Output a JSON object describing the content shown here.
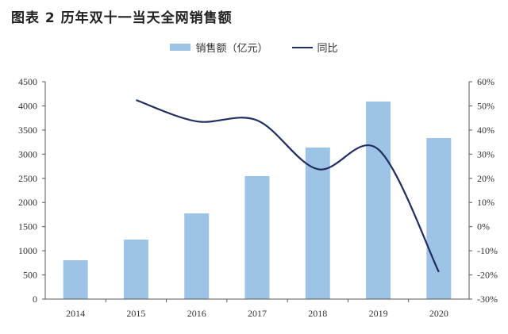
{
  "title": "图表 2 历年双十一当天全网销售额",
  "legend": {
    "bar_label": "销售额（亿元）",
    "line_label": "同比"
  },
  "colors": {
    "bar": "#9DC3E6",
    "line": "#1F2D5F",
    "axis": "#595959"
  },
  "chart_data": {
    "type": "bar+line",
    "title": "图表 2 历年双十一当天全网销售额",
    "categories": [
      "2014",
      "2015",
      "2016",
      "2017",
      "2018",
      "2019",
      "2020"
    ],
    "series": [
      {
        "name": "销售额（亿元）",
        "type": "bar",
        "axis": "left",
        "values": [
          805,
          1232,
          1774,
          2546,
          3137,
          4090,
          3334
        ]
      },
      {
        "name": "同比",
        "type": "line",
        "axis": "right",
        "values": [
          null,
          52.4,
          43.6,
          44.0,
          23.8,
          32.0,
          -18.8
        ],
        "unit": "%"
      }
    ],
    "xlabel": "",
    "ylabel": "",
    "ylim": [
      0,
      4500
    ],
    "y2lim": [
      -30,
      60
    ],
    "yticks": [
      "0",
      "500",
      "1000",
      "1500",
      "2000",
      "2500",
      "3000",
      "3500",
      "4000",
      "4500"
    ],
    "y2ticks": [
      "-30%",
      "-20%",
      "-10%",
      "0%",
      "10%",
      "20%",
      "30%",
      "40%",
      "50%",
      "60%"
    ],
    "grid": false,
    "legend_position": "top"
  }
}
